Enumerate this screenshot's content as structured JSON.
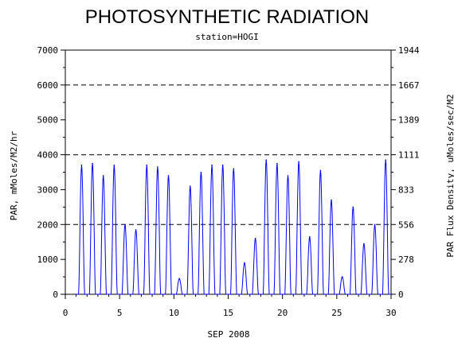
{
  "chart_data": {
    "type": "line",
    "title": "PHOTOSYNTHETIC RADIATION",
    "subtitle": "station=HOGI",
    "xlabel": "SEP 2008",
    "ylabel": "PAR, mMoles/M2/hr",
    "ylabel_right": "PAR Flux Density, uMoles/sec/M2",
    "xlim": [
      0,
      30
    ],
    "ylim": [
      0,
      7000
    ],
    "x_ticks": [
      "0",
      "5",
      "10",
      "15",
      "20",
      "25",
      "30"
    ],
    "y_ticks": [
      "0",
      "1000",
      "2000",
      "3000",
      "4000",
      "5000",
      "6000",
      "7000"
    ],
    "y_ticks_right": [
      "0",
      "278",
      "556",
      "833",
      "1111",
      "1389",
      "1667",
      "1944"
    ],
    "reference_lines": [
      2000,
      4000,
      6000
    ],
    "line_color": "#0000ff",
    "series": [
      {
        "daily_peaks": [
          {
            "day": 1.5,
            "value": 3700
          },
          {
            "day": 2.5,
            "value": 3750
          },
          {
            "day": 3.5,
            "value": 3400
          },
          {
            "day": 4.5,
            "value": 3700
          },
          {
            "day": 5.5,
            "value": 2000
          },
          {
            "day": 6.5,
            "value": 1850
          },
          {
            "day": 7.5,
            "value": 3700
          },
          {
            "day": 8.5,
            "value": 3650
          },
          {
            "day": 9.5,
            "value": 3400
          },
          {
            "day": 10.5,
            "value": 450
          },
          {
            "day": 11.5,
            "value": 3100
          },
          {
            "day": 12.5,
            "value": 3500
          },
          {
            "day": 13.5,
            "value": 3700
          },
          {
            "day": 14.5,
            "value": 3700
          },
          {
            "day": 15.5,
            "value": 3600
          },
          {
            "day": 16.5,
            "value": 900
          },
          {
            "day": 17.5,
            "value": 1600
          },
          {
            "day": 18.5,
            "value": 3850
          },
          {
            "day": 19.5,
            "value": 3750
          },
          {
            "day": 20.5,
            "value": 3400
          },
          {
            "day": 21.5,
            "value": 3800
          },
          {
            "day": 22.5,
            "value": 1650
          },
          {
            "day": 23.5,
            "value": 3550
          },
          {
            "day": 24.5,
            "value": 2700
          },
          {
            "day": 25.5,
            "value": 500
          },
          {
            "day": 26.5,
            "value": 2500
          },
          {
            "day": 27.5,
            "value": 1450
          },
          {
            "day": 28.5,
            "value": 2000
          },
          {
            "day": 29.5,
            "value": 3850
          }
        ]
      }
    ]
  }
}
